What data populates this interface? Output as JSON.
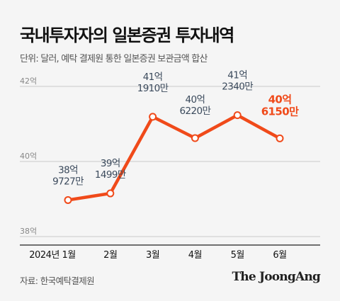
{
  "title": "국내투자자의 일본증권 투자내역",
  "subtitle": "단위: 달러, 예탁 결제원 통한 일본증권 보관금액 합산",
  "source": "자료: 한국예탁결제원",
  "brand": "The JoongAng",
  "colors": {
    "line": "#f04a1a",
    "background": "#f5f5f5",
    "highlight_label": "#f04a1a",
    "label": "#3b4a5c"
  },
  "chart_data": {
    "type": "line",
    "categories": [
      "2024년 1월",
      "2월",
      "3월",
      "4월",
      "5월",
      "6월"
    ],
    "values": [
      38.9727,
      39.1499,
      41.191,
      40.622,
      41.234,
      40.615
    ],
    "value_labels": [
      [
        "38억",
        "9727만"
      ],
      [
        "39억",
        "1499만"
      ],
      [
        "41억",
        "1910만"
      ],
      [
        "40억",
        "6220만"
      ],
      [
        "41억",
        "2340만"
      ],
      [
        "40억",
        "6150만"
      ]
    ],
    "highlight_index": 5,
    "yticks": [
      "38억",
      "40억",
      "42억"
    ],
    "ytick_values": [
      38,
      40,
      42
    ],
    "ylim": [
      38,
      42
    ],
    "grid": true,
    "unit": "억 달러"
  }
}
